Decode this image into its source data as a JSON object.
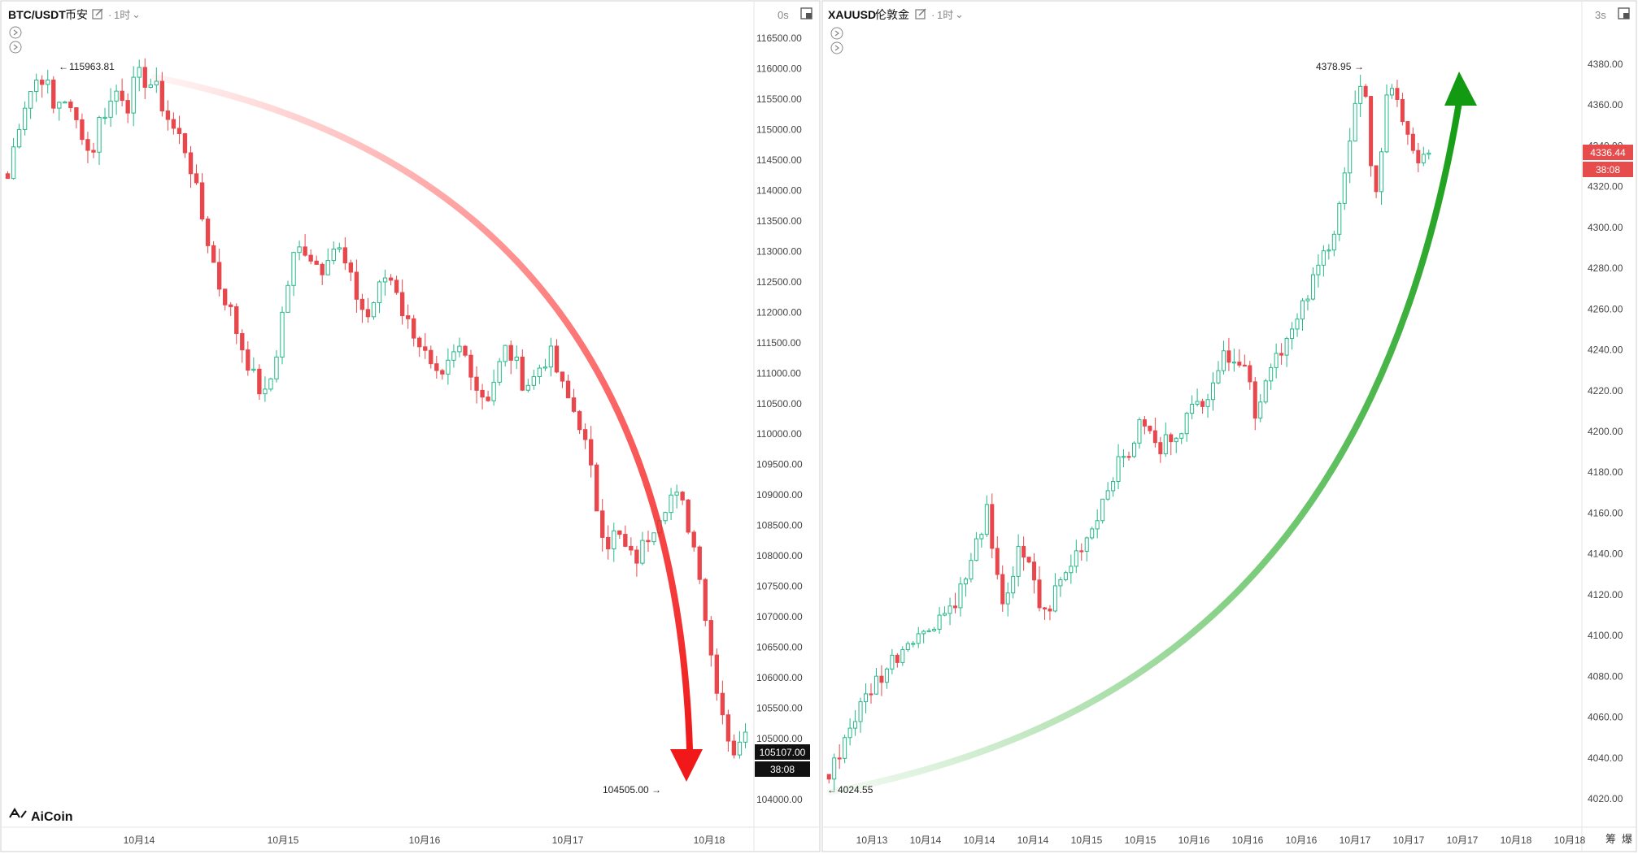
{
  "app": {
    "logo": "AiCoin"
  },
  "charts": [
    {
      "id": "btc",
      "symbol": "BTC/USDT",
      "exchange": "币安",
      "interval": "1时",
      "countdown": "0s",
      "price_tag": "105107.00",
      "timer_tag": "38:08",
      "high_label": "115963.81",
      "low_label": "104505.00",
      "x_labels": [
        "10月14",
        "10月15",
        "10月16",
        "10月17",
        "10月18"
      ],
      "y_labels": [
        "116500.00",
        "116000.00",
        "115500.00",
        "115000.00",
        "114500.00",
        "114000.00",
        "113500.00",
        "113000.00",
        "112500.00",
        "112000.00",
        "111500.00",
        "111000.00",
        "110500.00",
        "110000.00",
        "109500.00",
        "109000.00",
        "108500.00",
        "108000.00",
        "107500.00",
        "107000.00",
        "106500.00",
        "106000.00",
        "105500.00",
        "105000.00",
        "104500.00",
        "104000.00"
      ]
    },
    {
      "id": "xau",
      "symbol": "XAUUSD",
      "exchange": "伦敦金",
      "interval": "1时",
      "countdown": "3s",
      "price_tag": "4336.44",
      "timer_tag": "38:08",
      "high_label": "4378.95",
      "low_label": "4024.55",
      "x_labels": [
        "10月13",
        "10月14",
        "10月14",
        "10月14",
        "10月15",
        "10月15",
        "10月16",
        "10月16",
        "10月16",
        "10月17",
        "10月17",
        "10月17",
        "10月18",
        "10月18"
      ],
      "y_labels": [
        "4380.00",
        "4360.00",
        "4340.00",
        "4320.00",
        "4300.00",
        "4280.00",
        "4260.00",
        "4240.00",
        "4220.00",
        "4200.00",
        "4180.00",
        "4160.00",
        "4140.00",
        "4120.00",
        "4100.00",
        "4080.00",
        "4060.00",
        "4040.00",
        "4020.00"
      ],
      "side_labels": [
        "筹",
        "爆"
      ]
    }
  ],
  "chart_data": [
    {
      "type": "candlestick",
      "title": "BTC/USDT 币安 1时",
      "ylim": [
        103800,
        116800
      ],
      "x_ticks": [
        "10月14",
        "10月15",
        "10月16",
        "10月17",
        "10月18"
      ],
      "high": 115963.81,
      "low": 104505.0,
      "last": 105107.0,
      "trend": "down",
      "path": [
        114200,
        115000,
        115500,
        115800,
        115900,
        115300,
        115600,
        115200,
        115000,
        114500,
        115200,
        115400,
        115700,
        115400,
        115900,
        115800,
        115700,
        115300,
        115000,
        114800,
        114300,
        113600,
        113000,
        112400,
        112100,
        111600,
        111200,
        110800,
        110600,
        111200,
        112200,
        112900,
        113100,
        112900,
        112700,
        113100,
        113000,
        112600,
        112200,
        111900,
        112300,
        112600,
        112500,
        111900,
        111700,
        111400,
        111000,
        110800,
        111200,
        111400,
        111200,
        110700,
        110600,
        111000,
        111400,
        111200,
        110800,
        110900,
        111200,
        111300,
        110800,
        110500,
        110200,
        109600,
        108700,
        108200,
        108400,
        108100,
        107900,
        108200,
        108500,
        108800,
        109000,
        108900,
        108400,
        107800,
        106600,
        105800,
        105100,
        104700,
        105100
      ]
    },
    {
      "type": "candlestick",
      "title": "XAUUSD 伦敦金 1时",
      "ylim": [
        4012,
        4390
      ],
      "x_ticks": [
        "10月13",
        "10月14",
        "10月14",
        "10月14",
        "10月15",
        "10月15",
        "10月16",
        "10月16",
        "10月16",
        "10月17",
        "10月17",
        "10月17",
        "10月18",
        "10月18"
      ],
      "high": 4378.95,
      "low": 4024.55,
      "last": 4336.44,
      "trend": "up",
      "path": [
        4030,
        4040,
        4050,
        4058,
        4065,
        4072,
        4078,
        4082,
        4088,
        4092,
        4098,
        4102,
        4100,
        4106,
        4110,
        4112,
        4118,
        4125,
        4135,
        4150,
        4160,
        4130,
        4118,
        4125,
        4140,
        4135,
        4128,
        4108,
        4115,
        4125,
        4130,
        4138,
        4145,
        4150,
        4160,
        4170,
        4180,
        4185,
        4190,
        4200,
        4205,
        4195,
        4190,
        4198,
        4200,
        4205,
        4210,
        4215,
        4220,
        4230,
        4235,
        4240,
        4235,
        4230,
        4210,
        4220,
        4235,
        4240,
        4245,
        4250,
        4260,
        4270,
        4280,
        4290,
        4300,
        4320,
        4340,
        4370,
        4360,
        4310,
        4340,
        4375,
        4360,
        4350,
        4340,
        4330,
        4336
      ]
    }
  ]
}
